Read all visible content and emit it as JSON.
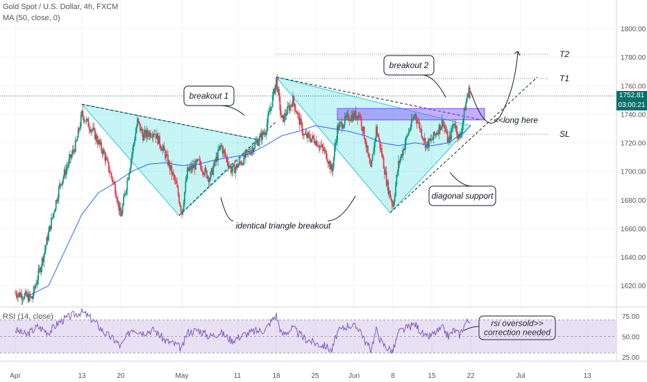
{
  "header": {
    "title": "Gold Spot / U.S. Dollar, 4h, FXCM",
    "indicator": "MA (50, close, 0)",
    "rsi_label": "RSI (14, close)"
  },
  "price_tags": {
    "last_price": "1752.81",
    "countdown": "03:00:21",
    "colors": {
      "price": "#0b6f6a",
      "countdown": "#0b6f6a"
    }
  },
  "chart_data": {
    "type": "candlestick",
    "symbol": "XAUUSD",
    "timeframe": "4h",
    "yaxis": {
      "min": 1605,
      "max": 1820,
      "ticks": [
        1620,
        1640,
        1660,
        1680,
        1700,
        1720,
        1740,
        1760,
        1780,
        1800
      ]
    },
    "x_ticks": [
      {
        "label": "Apr",
        "day": 0
      },
      {
        "label": "13",
        "day": 12
      },
      {
        "label": "20",
        "day": 19
      },
      {
        "label": "May",
        "day": 30
      },
      {
        "label": "11",
        "day": 40
      },
      {
        "label": "18",
        "day": 47
      },
      {
        "label": "25",
        "day": 54
      },
      {
        "label": "Jun",
        "day": 61
      },
      {
        "label": "8",
        "day": 68
      },
      {
        "label": "15",
        "day": 75
      },
      {
        "label": "22",
        "day": 82
      },
      {
        "label": "Jul",
        "day": 91
      },
      {
        "label": "13",
        "day": 103
      }
    ],
    "last_price": 1752.81,
    "close_path": [
      [
        0,
        1615
      ],
      [
        3,
        1611
      ],
      [
        5,
        1640
      ],
      [
        8,
        1690
      ],
      [
        11,
        1720
      ],
      [
        12,
        1740
      ],
      [
        14,
        1728
      ],
      [
        16,
        1712
      ],
      [
        18,
        1688
      ],
      [
        19,
        1668
      ],
      [
        21,
        1712
      ],
      [
        22,
        1735
      ],
      [
        23,
        1725
      ],
      [
        25,
        1728
      ],
      [
        27,
        1712
      ],
      [
        29,
        1690
      ],
      [
        30,
        1671
      ],
      [
        31,
        1700
      ],
      [
        33,
        1706
      ],
      [
        35,
        1695
      ],
      [
        37,
        1718
      ],
      [
        39,
        1700
      ],
      [
        41,
        1708
      ],
      [
        43,
        1718
      ],
      [
        45,
        1728
      ],
      [
        46,
        1745
      ],
      [
        47,
        1764
      ],
      [
        48,
        1735
      ],
      [
        50,
        1750
      ],
      [
        52,
        1725
      ],
      [
        54,
        1722
      ],
      [
        56,
        1712
      ],
      [
        57,
        1700
      ],
      [
        58,
        1730
      ],
      [
        60,
        1738
      ],
      [
        62,
        1740
      ],
      [
        63,
        1722
      ],
      [
        64,
        1700
      ],
      [
        65,
        1730
      ],
      [
        66,
        1712
      ],
      [
        67,
        1690
      ],
      [
        68,
        1676
      ],
      [
        69,
        1705
      ],
      [
        71,
        1730
      ],
      [
        72,
        1740
      ],
      [
        74,
        1718
      ],
      [
        75,
        1722
      ],
      [
        77,
        1735
      ],
      [
        78,
        1720
      ],
      [
        79,
        1735
      ],
      [
        80,
        1722
      ],
      [
        81,
        1745
      ],
      [
        81.6,
        1757
      ],
      [
        82,
        1752.8
      ]
    ],
    "ma50": [
      [
        2,
        1612
      ],
      [
        6,
        1620
      ],
      [
        9,
        1645
      ],
      [
        12,
        1670
      ],
      [
        15,
        1685
      ],
      [
        18,
        1692
      ],
      [
        21,
        1700
      ],
      [
        24,
        1705
      ],
      [
        27,
        1706
      ],
      [
        30,
        1704
      ],
      [
        33,
        1705
      ],
      [
        36,
        1708
      ],
      [
        39,
        1710
      ],
      [
        42,
        1712
      ],
      [
        45,
        1718
      ],
      [
        48,
        1725
      ],
      [
        51,
        1728
      ],
      [
        54,
        1732
      ],
      [
        57,
        1730
      ],
      [
        60,
        1728
      ],
      [
        63,
        1725
      ],
      [
        66,
        1720
      ],
      [
        69,
        1718
      ],
      [
        72,
        1720
      ],
      [
        75,
        1718
      ],
      [
        78,
        1720
      ],
      [
        81,
        1728
      ],
      [
        82,
        1732
      ]
    ],
    "rsi": {
      "ylim": [
        20,
        85
      ],
      "ticks": [
        25,
        50,
        75
      ],
      "band": [
        30,
        70
      ],
      "path": [
        [
          0,
          58
        ],
        [
          2,
          52
        ],
        [
          4,
          62
        ],
        [
          6,
          55
        ],
        [
          8,
          68
        ],
        [
          10,
          75
        ],
        [
          12,
          80
        ],
        [
          14,
          70
        ],
        [
          16,
          55
        ],
        [
          18,
          45
        ],
        [
          19,
          38
        ],
        [
          21,
          60
        ],
        [
          23,
          55
        ],
        [
          25,
          58
        ],
        [
          27,
          45
        ],
        [
          29,
          40
        ],
        [
          30,
          35
        ],
        [
          31,
          55
        ],
        [
          33,
          58
        ],
        [
          35,
          50
        ],
        [
          37,
          55
        ],
        [
          39,
          45
        ],
        [
          41,
          52
        ],
        [
          43,
          56
        ],
        [
          45,
          58
        ],
        [
          46,
          68
        ],
        [
          47,
          76
        ],
        [
          48,
          52
        ],
        [
          50,
          60
        ],
        [
          52,
          48
        ],
        [
          54,
          42
        ],
        [
          56,
          38
        ],
        [
          57,
          33
        ],
        [
          58,
          55
        ],
        [
          60,
          64
        ],
        [
          62,
          60
        ],
        [
          63,
          44
        ],
        [
          64,
          34
        ],
        [
          65,
          58
        ],
        [
          66,
          42
        ],
        [
          67,
          36
        ],
        [
          68,
          32
        ],
        [
          69,
          55
        ],
        [
          71,
          62
        ],
        [
          72,
          65
        ],
        [
          74,
          48
        ],
        [
          75,
          52
        ],
        [
          77,
          60
        ],
        [
          78,
          50
        ],
        [
          79,
          58
        ],
        [
          80,
          52
        ],
        [
          81,
          66
        ],
        [
          82,
          72
        ]
      ]
    },
    "levels": [
      {
        "name": "T2",
        "price": 1782,
        "from_day": 47
      },
      {
        "name": "T1",
        "price": 1765,
        "from_day": 47
      },
      {
        "name": "SL",
        "price": 1726,
        "from_day": 80
      }
    ],
    "annotations": [
      {
        "text": "breakout 1"
      },
      {
        "text": "breakout 2"
      },
      {
        "text": "<<long here"
      },
      {
        "text": "diagonal support"
      },
      {
        "text": "identical triangle breakout"
      },
      {
        "text": "rsi oversold>>"
      },
      {
        "text": "correction  needed"
      }
    ]
  }
}
